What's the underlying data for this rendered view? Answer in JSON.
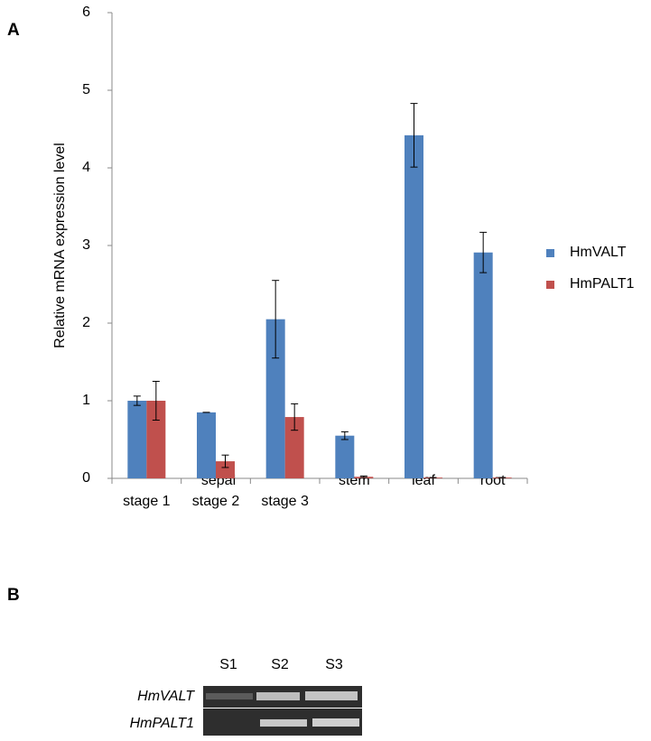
{
  "panel_labels": [
    "A",
    "B"
  ],
  "chart_data": {
    "type": "bar",
    "y_label": "Relative mRNA expression level",
    "categories": [
      "stage 1",
      "stage 2",
      "stage 3",
      "stem",
      "leaf",
      "root"
    ],
    "x_group_label": "sepal",
    "series": [
      {
        "name": "HmVALT",
        "color": "#4f81bd",
        "values": [
          1.0,
          0.85,
          2.05,
          0.55,
          4.42,
          2.91
        ],
        "errors": [
          0.06,
          0.0,
          0.5,
          0.05,
          0.41,
          0.26
        ]
      },
      {
        "name": "HmPALT1",
        "color": "#c0504d",
        "values": [
          1.0,
          0.22,
          0.79,
          0.02,
          0.01,
          0.01
        ],
        "errors": [
          0.25,
          0.08,
          0.17,
          0.01,
          0.0,
          0.0
        ]
      }
    ],
    "ylim": [
      0,
      6
    ],
    "yticks": [
      0,
      1,
      2,
      3,
      4,
      5,
      6
    ],
    "grid": false,
    "legend": "right"
  },
  "gel": {
    "lanes": [
      "S1",
      "S2",
      "S3"
    ],
    "genes": [
      "HmVALT",
      "HmPALT1"
    ]
  }
}
